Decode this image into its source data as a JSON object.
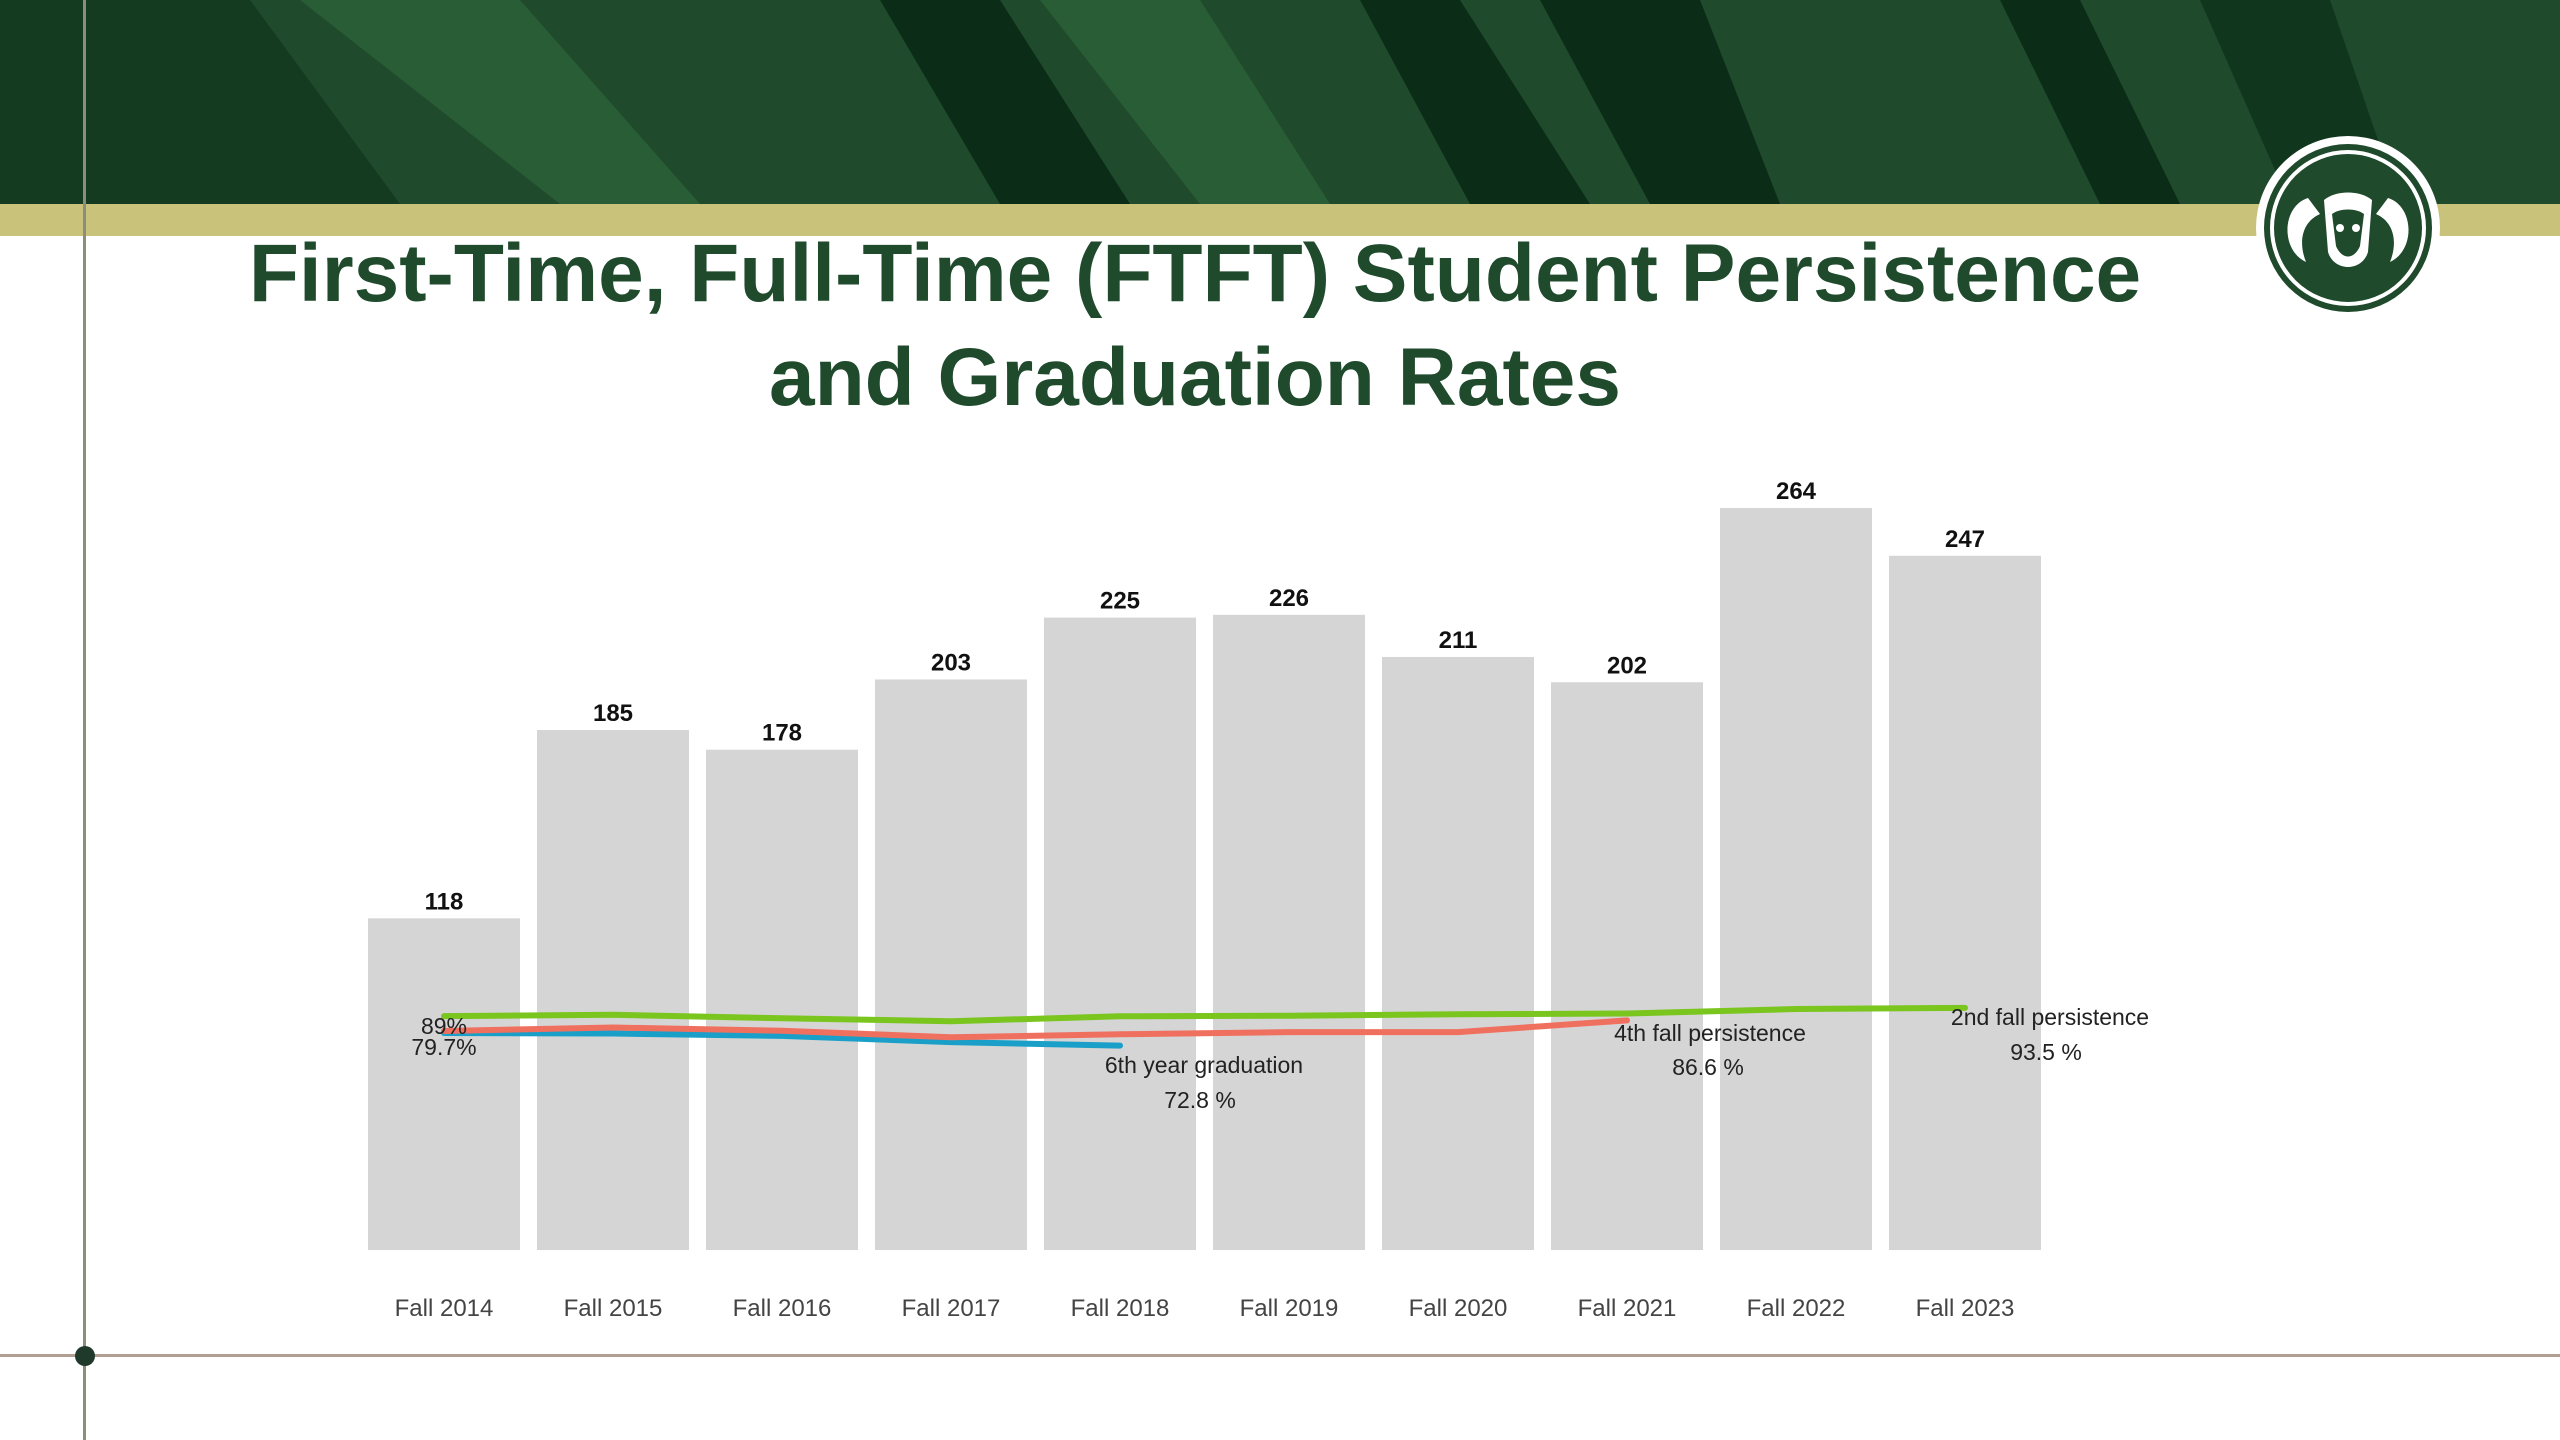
{
  "colors": {
    "brand_green": "#1f4a2c",
    "gold": "#c8c27a",
    "bar": "#d5d5d5",
    "grad_6th": "#1aa0c8",
    "persist_4th": "#f07060",
    "persist_2nd": "#7ac51e"
  },
  "icons": {
    "logo": "ram-head-logo"
  },
  "title": {
    "line1": "First-Time, Full-Time (FTFT) Student Persistence",
    "line2": "and Graduation Rates"
  },
  "chart_data": {
    "type": "bar",
    "categories": [
      "Fall 2014",
      "Fall 2015",
      "Fall 2016",
      "Fall 2017",
      "Fall 2018",
      "Fall 2019",
      "Fall 2020",
      "Fall 2021",
      "Fall 2022",
      "Fall 2023"
    ],
    "values": [
      118,
      185,
      178,
      203,
      225,
      226,
      211,
      202,
      264,
      247
    ],
    "ylim": [
      0,
      264
    ],
    "grid": false,
    "lines": [
      {
        "id": "grad-6th",
        "color": "#1aa0c8",
        "values": [
          79.7,
          79.4,
          78.1,
          74.7,
          72.8,
          null,
          null,
          null,
          null,
          null
        ]
      },
      {
        "id": "persist-4th",
        "color": "#f07060",
        "values": [
          80.8,
          82.7,
          80.9,
          77.4,
          79.0,
          80.2,
          80.2,
          86.6,
          null,
          null
        ]
      },
      {
        "id": "persist-2nd",
        "color": "#7ac51e",
        "values": [
          89.0,
          89.7,
          87.8,
          86.2,
          88.9,
          89.2,
          90.0,
          90.4,
          92.9,
          93.5
        ]
      }
    ],
    "annotations": [
      {
        "id": "p2-start",
        "text": "89%"
      },
      {
        "id": "g6-start",
        "text": "79.7%"
      },
      {
        "id": "g6-name",
        "text": "6th year graduation"
      },
      {
        "id": "g6-end",
        "text": "72.8 %"
      },
      {
        "id": "p4-name",
        "text": "4th fall persistence"
      },
      {
        "id": "p4-end",
        "text": "86.6 %"
      },
      {
        "id": "p2-name",
        "text": "2nd fall persistence"
      },
      {
        "id": "p2-end",
        "text": "93.5 %"
      }
    ]
  }
}
